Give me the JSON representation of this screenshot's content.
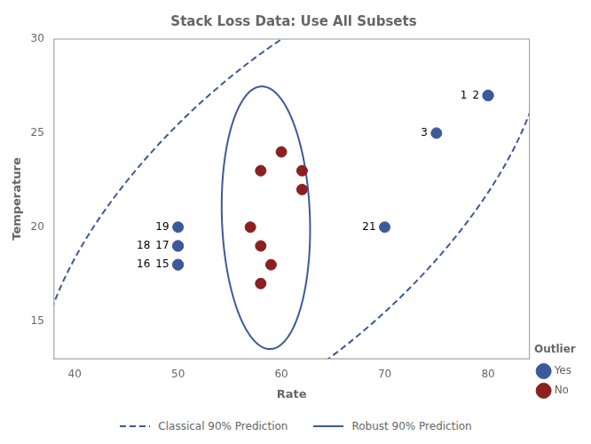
{
  "chart_data": {
    "type": "scatter",
    "title": "Stack Loss Data: Use All Subsets",
    "xlabel": "Rate",
    "ylabel": "Temperature",
    "xlim": [
      38,
      84
    ],
    "ylim": [
      13,
      30
    ],
    "xticks": [
      40,
      50,
      60,
      70,
      80
    ],
    "yticks": [
      15,
      20,
      25,
      30
    ],
    "grid": false,
    "legend": "lower right",
    "legend_title": "Outlier",
    "series": [
      {
        "name": "Yes",
        "color": "#3C5A9A",
        "x": [
          80,
          80,
          75,
          70,
          50,
          50,
          50,
          50,
          50
        ],
        "values": [
          27,
          27,
          25,
          20,
          20,
          19,
          19,
          18,
          18
        ],
        "labels": [
          "1",
          "2",
          "3",
          "21",
          "19",
          "18",
          "17",
          "16",
          "15"
        ]
      },
      {
        "name": "No",
        "color": "#8B2020",
        "x": [
          57,
          58,
          58,
          58,
          59,
          60,
          62,
          62
        ],
        "values": [
          20,
          23,
          19,
          17,
          18,
          24,
          23,
          22
        ]
      }
    ],
    "ellipses": [
      {
        "name": "Classical 90% Prediction",
        "center_x": 61,
        "center_y": 21,
        "width": 52,
        "height": 17.5,
        "angle": 22,
        "color": "#3C5A9A",
        "line_style": "dashed"
      },
      {
        "name": "Robust 90% Prediction",
        "center_x": 58.5,
        "center_y": 20.5,
        "width": 8.5,
        "height": 14,
        "angle": 5,
        "color": "#3C5A9A",
        "line_style": "solid"
      }
    ]
  }
}
